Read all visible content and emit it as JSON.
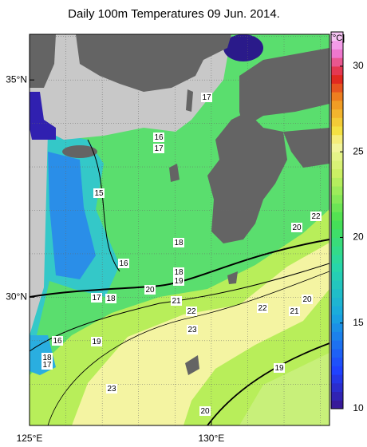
{
  "title": "Daily 100m Temperatures 09 Jun. 2014.",
  "map": {
    "lonlim": [
      125,
      133.25
    ],
    "latlim": [
      27.05,
      36.05
    ],
    "lon_grid": [
      126,
      127,
      128,
      129,
      130,
      131,
      132,
      133
    ],
    "lat_grid": [
      28,
      29,
      30,
      31,
      32,
      33,
      34,
      35,
      36
    ],
    "lon_ticks": [
      {
        "value": 125,
        "label": "125°E"
      },
      {
        "value": 130,
        "label": "130°E"
      }
    ],
    "lat_ticks": [
      {
        "value": 35,
        "label": "35°N"
      },
      {
        "value": 30,
        "label": "30°N"
      }
    ],
    "contour_labels": [
      17,
      16,
      17,
      15,
      18,
      16,
      18,
      19,
      20,
      17,
      18,
      21,
      22,
      22,
      20,
      21,
      22,
      20,
      23,
      16,
      19,
      18,
      17,
      23,
      19,
      20
    ]
  },
  "colorbar": {
    "unit": "[°C]",
    "range": [
      10,
      32
    ],
    "ticks": [
      10,
      15,
      20,
      25,
      30
    ]
  }
}
